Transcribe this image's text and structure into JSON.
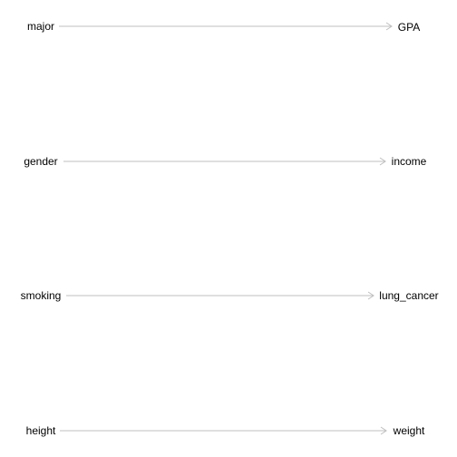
{
  "diagram": {
    "type": "directed-graph",
    "edge_color": "#bfbfbf",
    "text_color": "#000000",
    "edges": [
      {
        "from": "major",
        "to": "GPA"
      },
      {
        "from": "gender",
        "to": "income"
      },
      {
        "from": "smoking",
        "to": "lung_cancer"
      },
      {
        "from": "height",
        "to": "weight"
      }
    ]
  }
}
